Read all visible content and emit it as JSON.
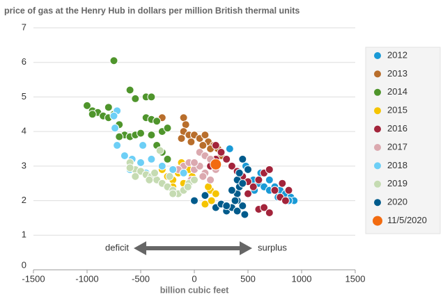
{
  "chart_data": {
    "type": "scatter",
    "title": "price of gas at the Henry Hub in dollars per million British thermal units",
    "x_label": "billion cubic feet",
    "annotations": [
      "deficit",
      "surplus"
    ],
    "xlim": [
      -1500,
      1500
    ],
    "xticks": [
      -1500,
      -1000,
      -500,
      0,
      500,
      1000,
      1500
    ],
    "ylim": [
      0,
      7
    ],
    "yticks": [
      0,
      1,
      2,
      3,
      4,
      5,
      6,
      7
    ],
    "grid": true,
    "legend": "right",
    "series": [
      {
        "name": "2012",
        "color": "#1a9ad6",
        "x": [
          330,
          450,
          500,
          550,
          600,
          650,
          700,
          750,
          800,
          850,
          900,
          930,
          880,
          700,
          620,
          480,
          560,
          780
        ],
        "values": [
          3.5,
          3.2,
          2.9,
          2.6,
          2.5,
          2.4,
          2.3,
          2.4,
          2.3,
          2.2,
          2.1,
          2.0,
          2.0,
          2.6,
          2.8,
          3.0,
          2.3,
          2.1
        ]
      },
      {
        "name": "2013",
        "color": "#b86e2c",
        "x": [
          -300,
          -100,
          -80,
          -100,
          -50,
          0,
          50,
          100,
          130,
          180,
          220,
          -30,
          150,
          250,
          -120,
          80
        ],
        "values": [
          4.4,
          4.4,
          4.2,
          4.0,
          3.9,
          3.9,
          3.8,
          3.9,
          3.7,
          3.6,
          3.5,
          3.7,
          3.5,
          3.3,
          3.8,
          3.6
        ]
      },
      {
        "name": "2014",
        "color": "#4f952c",
        "x": [
          -750,
          -600,
          -450,
          -550,
          -1000,
          -950,
          -900,
          -850,
          -800,
          -750,
          -700,
          -650,
          -600,
          -550,
          -500,
          -450,
          -400,
          -350,
          -400,
          -300,
          -250,
          -400,
          -800,
          -950,
          -700,
          -350,
          -300,
          -250
        ],
        "values": [
          6.05,
          5.2,
          5.0,
          4.95,
          4.75,
          4.6,
          4.55,
          4.45,
          4.4,
          4.5,
          4.2,
          3.9,
          3.85,
          3.9,
          3.95,
          4.4,
          4.35,
          4.3,
          3.9,
          4.0,
          4.1,
          5.0,
          4.7,
          4.5,
          3.85,
          3.6,
          3.4,
          3.2
        ]
      },
      {
        "name": "2015",
        "color": "#f5c400",
        "x": [
          -300,
          -250,
          -200,
          -150,
          -100,
          -50,
          -350,
          -200,
          150,
          200,
          130,
          100,
          160,
          -120,
          -20
        ],
        "values": [
          2.9,
          2.7,
          2.6,
          2.8,
          2.5,
          2.9,
          2.6,
          2.4,
          2.3,
          2.2,
          2.4,
          1.9,
          2.0,
          3.1,
          2.7
        ]
      },
      {
        "name": "2016",
        "color": "#a3243b",
        "x": [
          200,
          250,
          300,
          350,
          400,
          450,
          500,
          550,
          600,
          650,
          700,
          750,
          800,
          850,
          880,
          600,
          650,
          700,
          500,
          200,
          150,
          820
        ],
        "values": [
          3.6,
          3.4,
          3.2,
          3.0,
          2.85,
          2.7,
          2.55,
          2.4,
          2.6,
          2.8,
          2.9,
          2.3,
          2.1,
          2.0,
          2.3,
          1.75,
          1.8,
          1.65,
          2.2,
          3.2,
          3.0,
          2.5
        ]
      },
      {
        "name": "2017",
        "color": "#dba9af",
        "x": [
          50,
          100,
          -100,
          -50,
          0,
          50,
          -150,
          100,
          150,
          0,
          -30,
          150,
          -200,
          80,
          200
        ],
        "values": [
          3.4,
          3.3,
          3.0,
          3.1,
          2.9,
          3.0,
          2.9,
          2.8,
          3.2,
          3.1,
          2.6,
          2.6,
          2.9,
          2.7,
          2.9
        ]
      },
      {
        "name": "2018",
        "color": "#6dcff6",
        "x": [
          -720,
          -740,
          -720,
          -650,
          -600,
          -580,
          -500,
          -480,
          -300,
          -200,
          -100,
          -450,
          -750,
          -400
        ],
        "values": [
          4.6,
          4.1,
          3.6,
          3.3,
          2.9,
          3.2,
          3.1,
          3.6,
          3.0,
          2.9,
          2.8,
          2.8,
          4.45,
          3.2
        ]
      },
      {
        "name": "2019",
        "color": "#c5dbb2",
        "x": [
          -600,
          -550,
          -500,
          -450,
          -400,
          -350,
          -300,
          -250,
          -200,
          -150,
          -100,
          -50,
          0,
          -550,
          -420,
          -370,
          -230,
          -600,
          -320,
          -60,
          -200
        ],
        "values": [
          3.1,
          2.9,
          2.85,
          2.75,
          2.7,
          2.6,
          2.5,
          2.4,
          2.3,
          2.2,
          2.3,
          2.5,
          2.6,
          2.7,
          2.6,
          2.8,
          2.7,
          2.95,
          3.45,
          2.4,
          2.2
        ]
      },
      {
        "name": "2020",
        "color": "#005b8c",
        "x": [
          200,
          250,
          300,
          350,
          400,
          450,
          400,
          400,
          420,
          400,
          450,
          500,
          450,
          420,
          380,
          350,
          100,
          0,
          470,
          300
        ],
        "values": [
          1.8,
          1.9,
          1.7,
          1.8,
          1.7,
          1.85,
          2.0,
          2.2,
          2.4,
          2.6,
          2.5,
          2.9,
          3.2,
          2.8,
          2.0,
          2.3,
          2.15,
          2.0,
          1.6,
          1.85
        ]
      },
      {
        "name": "11/5/2020",
        "color": "#f26b10",
        "x": [
          200
        ],
        "values": [
          3.05
        ]
      }
    ]
  }
}
